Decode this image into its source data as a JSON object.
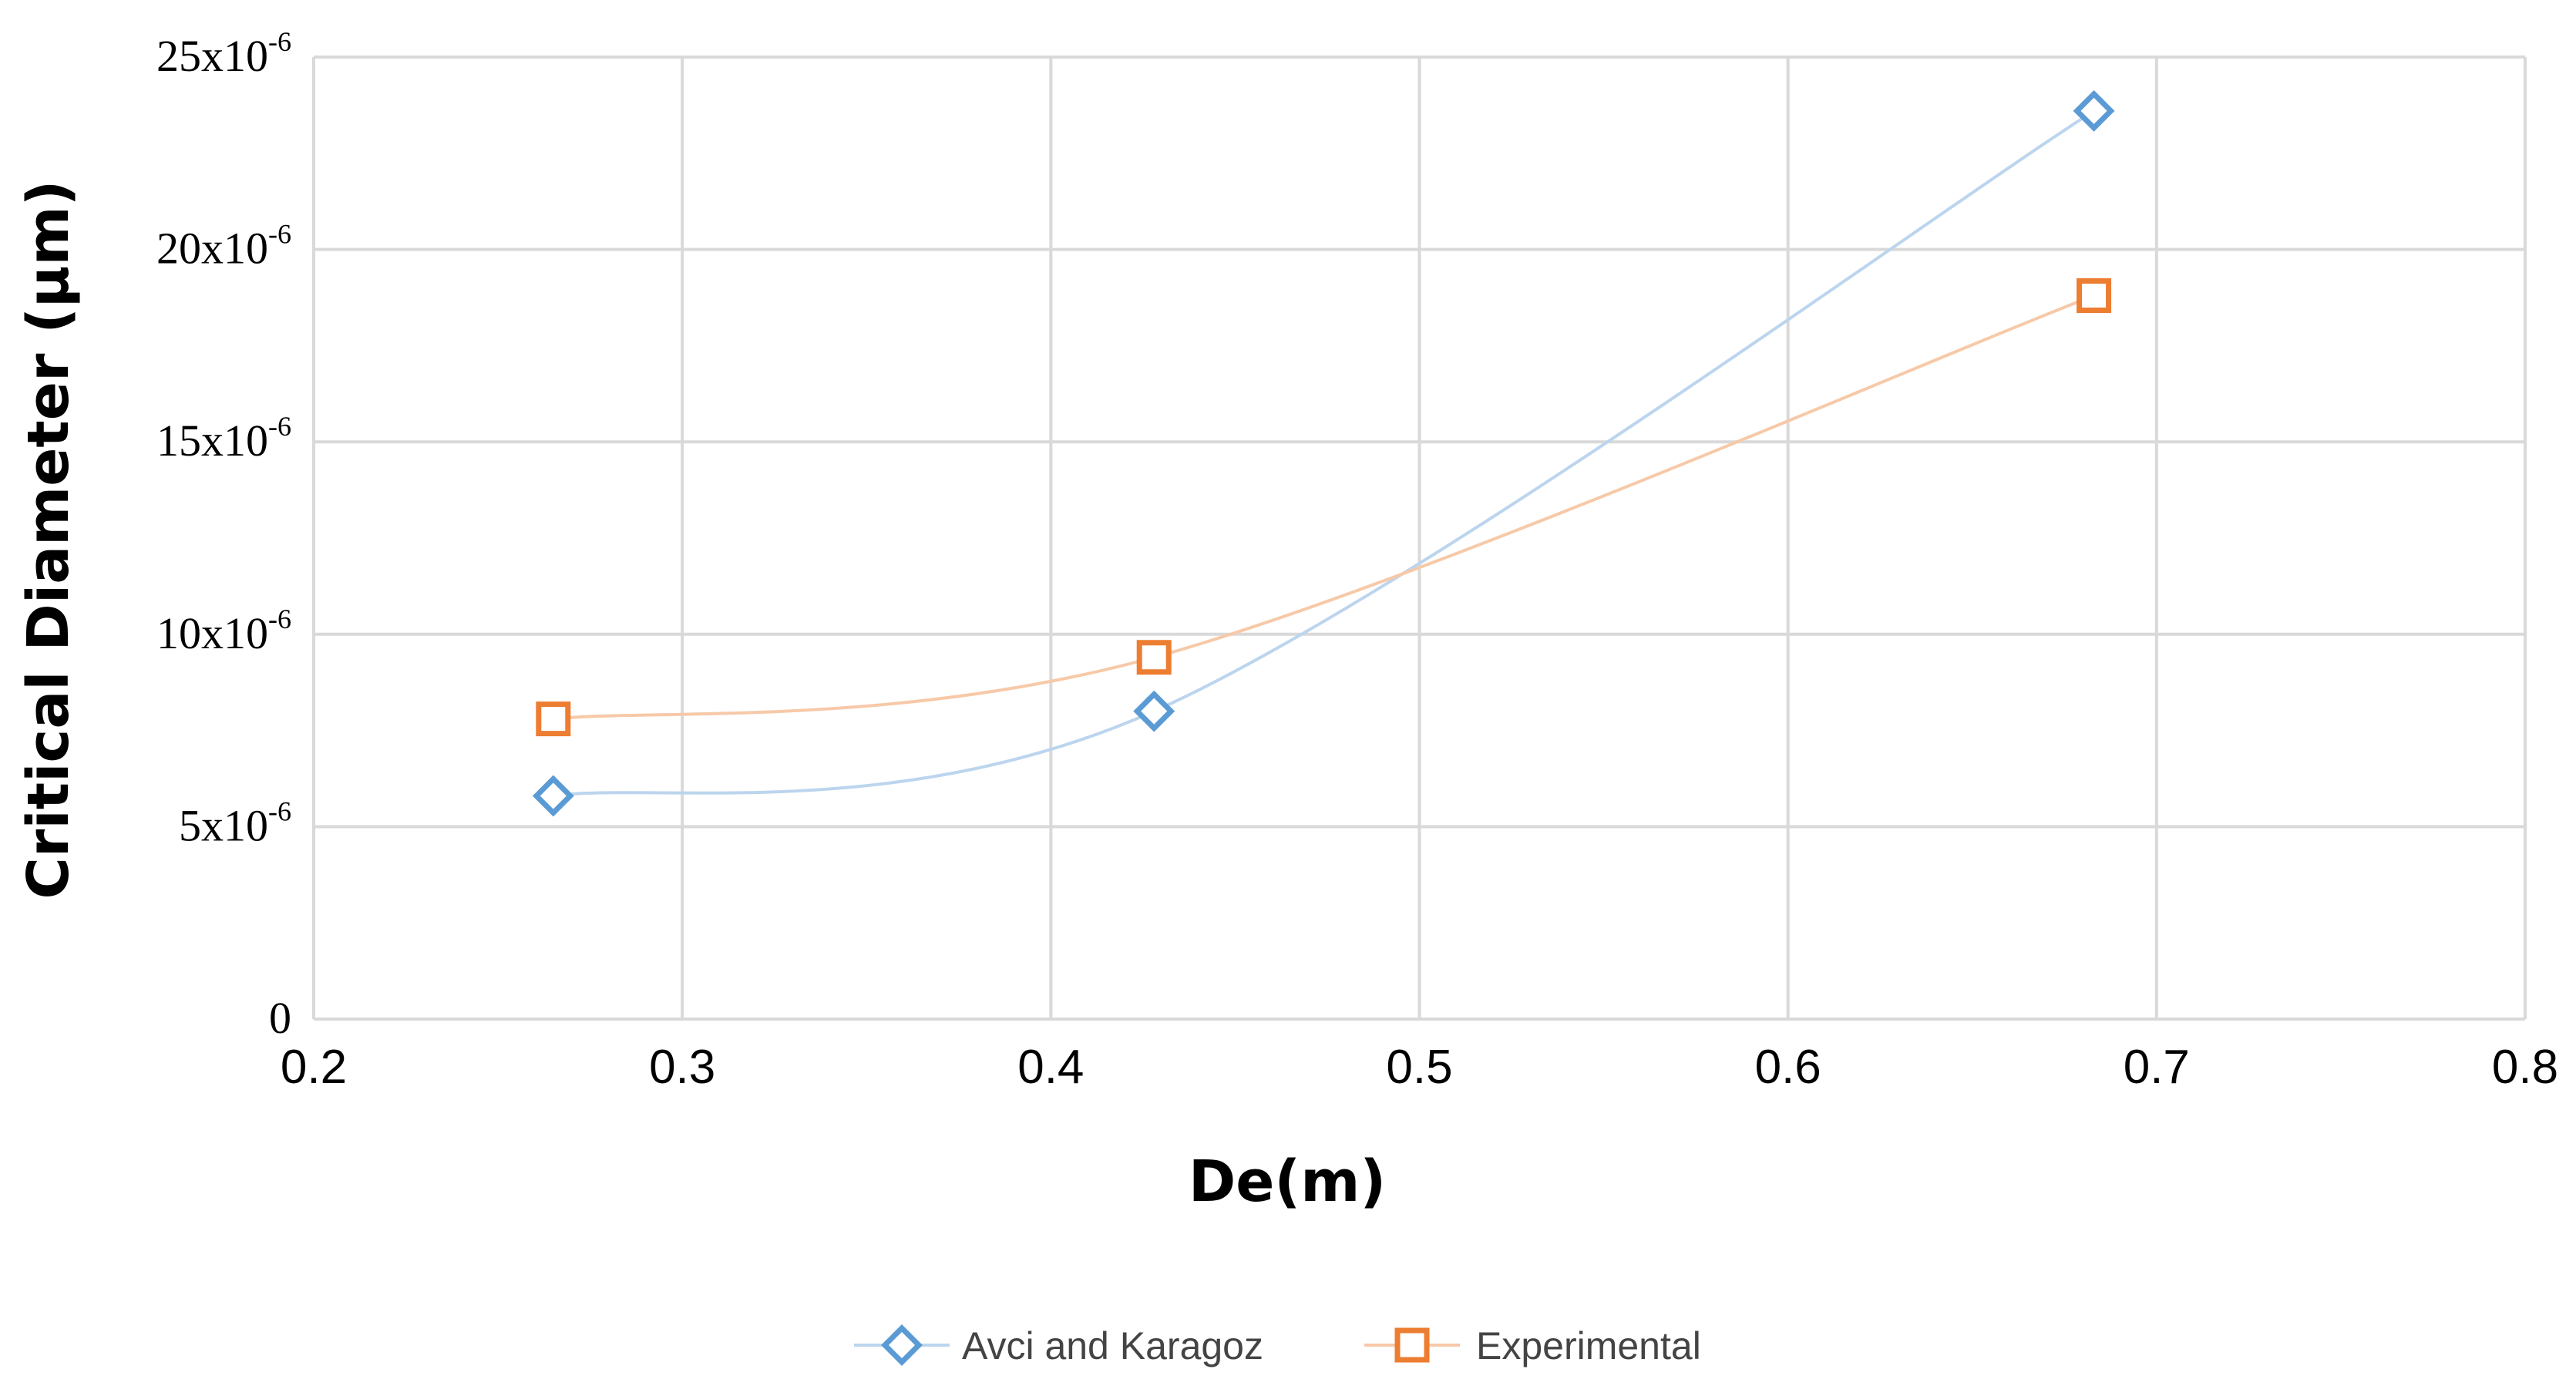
{
  "chart_data": {
    "type": "line",
    "xlabel": "De(m)",
    "ylabel": "Critical Diameter (μm)",
    "xlim": [
      0.2,
      0.8
    ],
    "ylim": [
      0,
      2.5e-05
    ],
    "x_ticks": [
      "0.2",
      "0.3",
      "0.4",
      "0.5",
      "0.6",
      "0.7",
      "0.8"
    ],
    "x_tick_values": [
      0.2,
      0.3,
      0.4,
      0.5,
      0.6,
      0.7,
      0.8
    ],
    "y_ticks": [
      {
        "value": 0,
        "base": "0",
        "exp": ""
      },
      {
        "value": 5e-06,
        "base": "5x10",
        "exp": "-6"
      },
      {
        "value": 1e-05,
        "base": "10x10",
        "exp": "-6"
      },
      {
        "value": 1.5e-05,
        "base": "15x10",
        "exp": "-6"
      },
      {
        "value": 2e-05,
        "base": "20x10",
        "exp": "-6"
      },
      {
        "value": 2.5e-05,
        "base": "25x10",
        "exp": "-6"
      }
    ],
    "grid": true,
    "legend_position": "bottom-center",
    "series": [
      {
        "name": "Avci and Karagoz",
        "color": "#5b9bd5",
        "marker": "diamond",
        "x": [
          0.265,
          0.428,
          0.683
        ],
        "y": [
          5.8e-06,
          8e-06,
          2.36e-05
        ]
      },
      {
        "name": "Experimental",
        "color": "#ed7d31",
        "marker": "square",
        "x": [
          0.265,
          0.428,
          0.683
        ],
        "y": [
          7.8e-06,
          9.4e-06,
          1.88e-05
        ]
      }
    ]
  }
}
